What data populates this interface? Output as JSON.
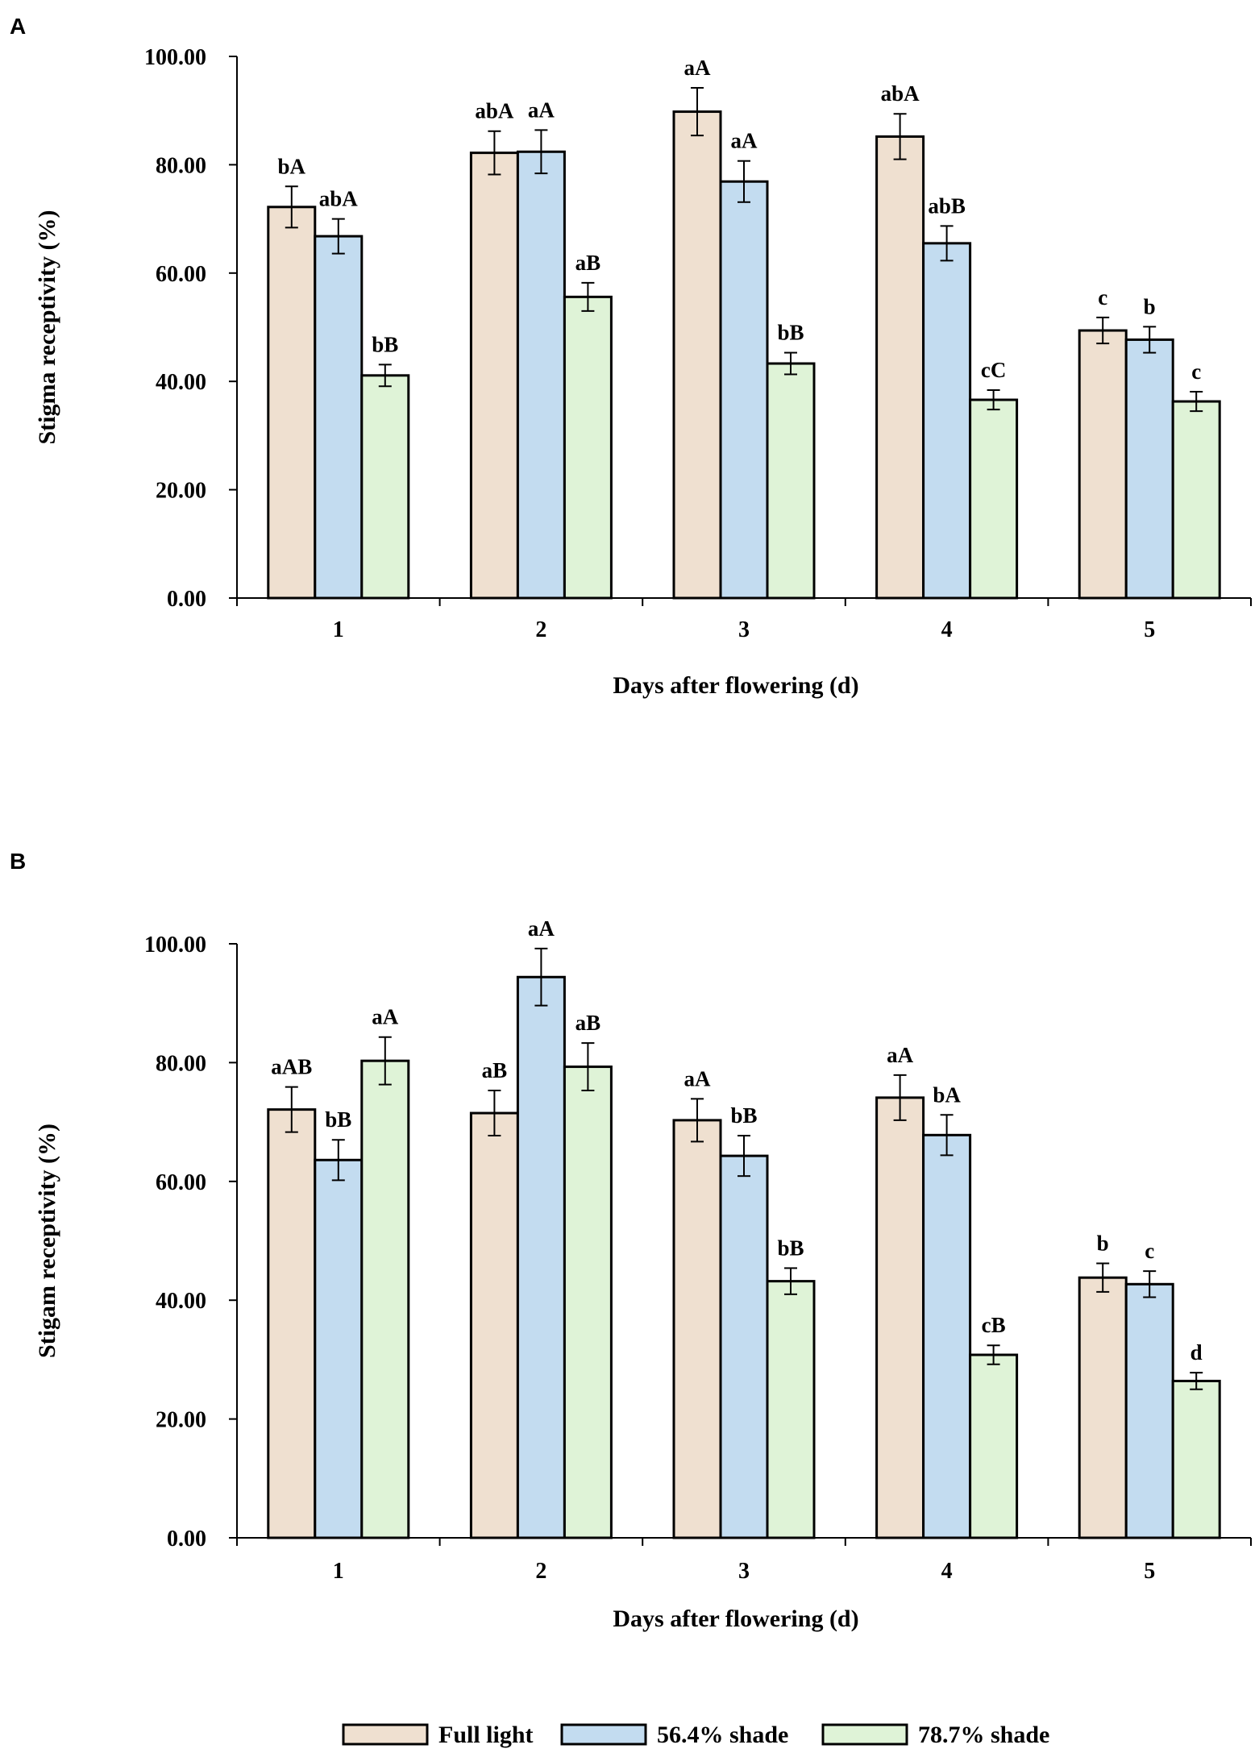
{
  "legend": {
    "items": [
      {
        "label": "Full light",
        "color": "#efe0d0"
      },
      {
        "label": "56.4% shade",
        "color": "#c3dcf0"
      },
      {
        "label": "78.7% shade",
        "color": "#dff3d7"
      }
    ]
  },
  "chart_data": [
    {
      "panel": "A",
      "type": "bar",
      "title": "",
      "xlabel": "Days after flowering (d)",
      "ylabel": "Stigma receptivity (%)",
      "ylim": [
        0,
        100
      ],
      "yticks": [
        "0.00",
        "20.00",
        "40.00",
        "60.00",
        "80.00",
        "100.00"
      ],
      "categories": [
        "1",
        "2",
        "3",
        "4",
        "5"
      ],
      "series": [
        {
          "name": "Full light",
          "values": [
            72.2,
            82.2,
            89.8,
            85.2,
            49.4
          ],
          "errors": [
            3.8,
            4.0,
            4.4,
            4.2,
            2.4
          ],
          "labels": [
            "bA",
            "abA",
            "aA",
            "abA",
            "c"
          ]
        },
        {
          "name": "56.4% shade",
          "values": [
            66.8,
            82.4,
            76.9,
            65.5,
            47.7
          ],
          "errors": [
            3.2,
            4.0,
            3.8,
            3.2,
            2.4
          ],
          "labels": [
            "abA",
            "aA",
            "aA",
            "abB",
            "b"
          ]
        },
        {
          "name": "78.7% shade",
          "values": [
            41.1,
            55.6,
            43.3,
            36.6,
            36.3
          ],
          "errors": [
            2.0,
            2.6,
            2.0,
            1.8,
            1.8
          ],
          "labels": [
            "bB",
            "aB",
            "bB",
            "cC",
            "c"
          ]
        }
      ]
    },
    {
      "panel": "B",
      "type": "bar",
      "title": "",
      "xlabel": "Days after flowering (d)",
      "ylabel": "Stigam receptivity (%)",
      "ylim": [
        0,
        100
      ],
      "yticks": [
        "0.00",
        "20.00",
        "40.00",
        "60.00",
        "80.00",
        "100.00"
      ],
      "categories": [
        "1",
        "2",
        "3",
        "4",
        "5"
      ],
      "series": [
        {
          "name": "Full light",
          "values": [
            72.1,
            71.5,
            70.3,
            74.1,
            43.8
          ],
          "errors": [
            3.8,
            3.8,
            3.6,
            3.8,
            2.4
          ],
          "labels": [
            "aAB",
            "aB",
            "aA",
            "aA",
            "b"
          ]
        },
        {
          "name": "56.4% shade",
          "values": [
            63.6,
            94.4,
            64.3,
            67.8,
            42.7
          ],
          "errors": [
            3.4,
            4.8,
            3.4,
            3.4,
            2.2
          ],
          "labels": [
            "bB",
            "aA",
            "bB",
            "bA",
            "c"
          ]
        },
        {
          "name": "78.7% shade",
          "values": [
            80.3,
            79.3,
            43.2,
            30.8,
            26.4
          ],
          "errors": [
            4.0,
            4.0,
            2.2,
            1.6,
            1.4
          ],
          "labels": [
            "aA",
            "aB",
            "bB",
            "cB",
            "d"
          ]
        }
      ]
    }
  ]
}
